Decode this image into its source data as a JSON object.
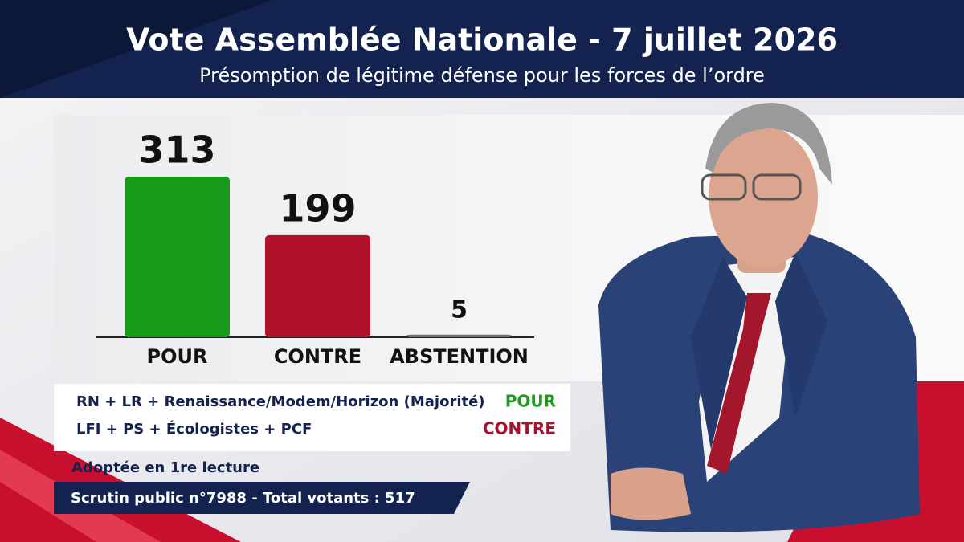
{
  "chart_data": {
    "type": "bar",
    "title": "Vote Assemblée Nationale - 7 juillet 2026",
    "subtitle": "Présomption de légitime défense pour les forces de l’ordre",
    "categories": [
      "POUR",
      "CONTRE",
      "ABSTENTION"
    ],
    "values": [
      313,
      199,
      5
    ],
    "colors": [
      "#1a9a1a",
      "#b3102c",
      "#707070"
    ]
  },
  "legend": [
    {
      "parties": "RN + LR + Renaissance/Modem/Horizon (Majorité)",
      "vote": "POUR",
      "color": "#1f9a1f"
    },
    {
      "parties": "LFI + PS + Écologistes + PCF",
      "vote": "CONTRE",
      "color": "#a8102c"
    }
  ],
  "footer": {
    "status": "Adoptée en 1re lecture",
    "scrutin": "Scrutin public n°7988 - Total votants : 517"
  }
}
